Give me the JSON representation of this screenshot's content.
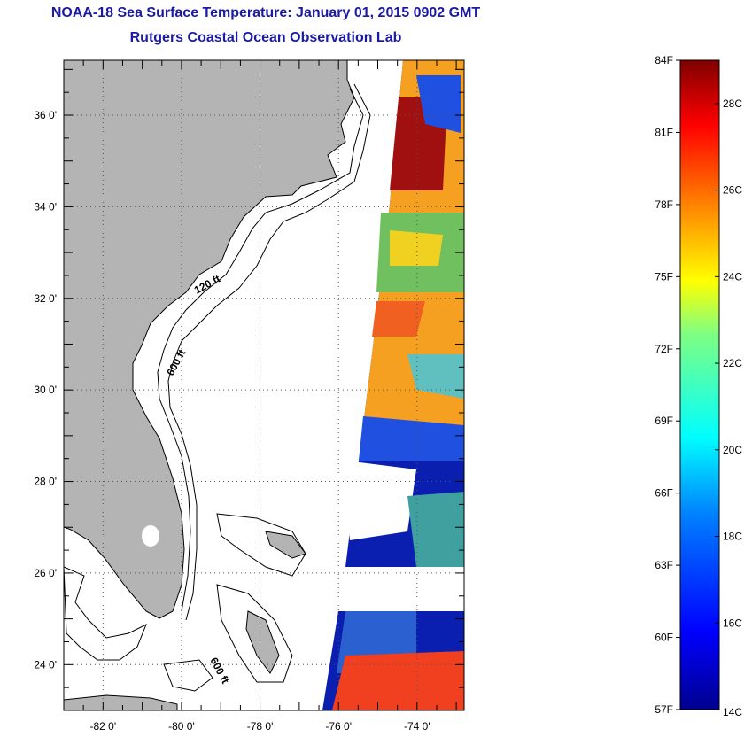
{
  "header": {
    "title": "NOAA-18 Sea Surface Temperature:  January 01, 2015 0902 GMT",
    "subtitle": "Rutgers Coastal Ocean Observation Lab"
  },
  "map": {
    "lon_range": [
      -83,
      -72.8
    ],
    "lat_range": [
      23,
      37.2
    ],
    "lat_labels": [
      "36 0'",
      "34 0'",
      "32 0'",
      "30 0'",
      "28 0'",
      "26 0'",
      "24 0'"
    ],
    "lat_values": [
      36,
      34,
      32,
      30,
      28,
      26,
      24
    ],
    "lon_labels": [
      "-82 0'",
      "-80 0'",
      "-78 0'",
      "-76 0'",
      "-74 0'"
    ],
    "lon_values": [
      -82,
      -80,
      -78,
      -76,
      -74
    ],
    "contour_labels": [
      "120 ft",
      "600 ft",
      "600 ft"
    ],
    "land_color": "#b4b4b4"
  },
  "colorbar": {
    "min_f": 57,
    "max_f": 84,
    "min_c": 14,
    "max_c": 29,
    "f_labels": [
      "84F",
      "81F",
      "78F",
      "75F",
      "72F",
      "69F",
      "66F",
      "63F",
      "60F",
      "57F"
    ],
    "c_labels": [
      "28C",
      "26C",
      "24C",
      "22C",
      "20C",
      "18C",
      "16C",
      "14C"
    ],
    "c_values": [
      28,
      26,
      24,
      22,
      20,
      18,
      16,
      14
    ]
  }
}
